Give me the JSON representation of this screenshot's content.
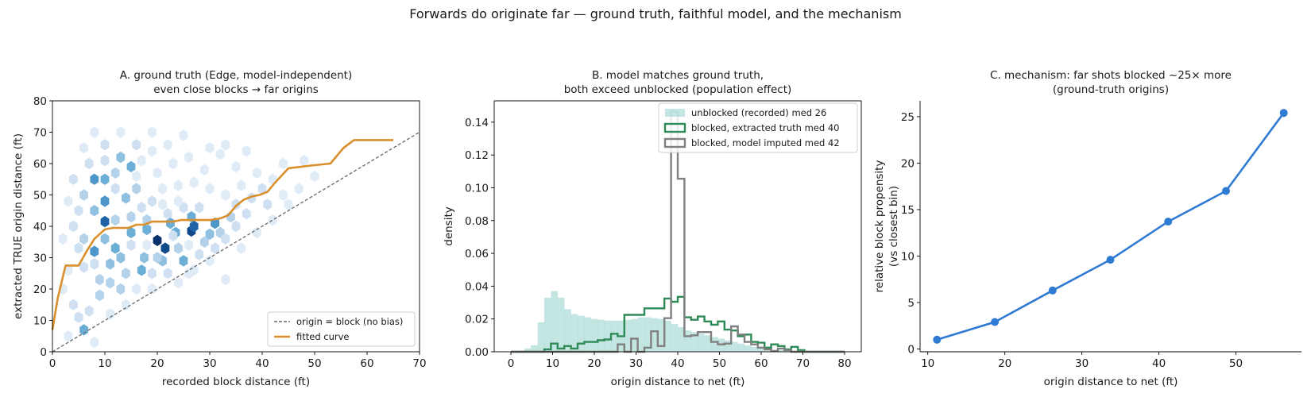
{
  "figure": {
    "suptitle": "Forwards do originate far — ground truth, faithful model, and the mechanism"
  },
  "chart_data": [
    {
      "panel": "A",
      "type": "heatmap",
      "title_lines": [
        "A. ground truth (Edge, model-independent)",
        "even close blocks → far origins"
      ],
      "xlabel": "recorded block distance (ft)",
      "ylabel": "extracted TRUE origin distance (ft)",
      "xlim": [
        0,
        70
      ],
      "ylim": [
        0,
        80
      ],
      "xticks": [
        0,
        10,
        20,
        30,
        40,
        50,
        60,
        70
      ],
      "yticks": [
        0,
        10,
        20,
        30,
        40,
        50,
        60,
        70,
        80
      ],
      "hexbin_counts": [
        {
          "x": 20,
          "y": 35.5,
          "c": 10
        },
        {
          "x": 21.5,
          "y": 33,
          "c": 9
        },
        {
          "x": 26.5,
          "y": 38.5,
          "c": 9
        },
        {
          "x": 27,
          "y": 40,
          "c": 8
        },
        {
          "x": 10,
          "y": 41.5,
          "c": 8
        },
        {
          "x": 31,
          "y": 41,
          "c": 6
        },
        {
          "x": 8,
          "y": 55,
          "c": 6
        },
        {
          "x": 8,
          "y": 32,
          "c": 6
        },
        {
          "x": 10,
          "y": 48,
          "c": 6
        },
        {
          "x": 10,
          "y": 55,
          "c": 5
        },
        {
          "x": 15,
          "y": 38,
          "c": 5
        },
        {
          "x": 18,
          "y": 39,
          "c": 5
        },
        {
          "x": 23.5,
          "y": 38,
          "c": 5
        },
        {
          "x": 22.5,
          "y": 41,
          "c": 5
        },
        {
          "x": 26.5,
          "y": 43,
          "c": 5
        },
        {
          "x": 30,
          "y": 37.5,
          "c": 4
        },
        {
          "x": 25,
          "y": 29,
          "c": 5
        },
        {
          "x": 21,
          "y": 29,
          "c": 4
        },
        {
          "x": 17,
          "y": 26,
          "c": 5
        },
        {
          "x": 12,
          "y": 33,
          "c": 5
        },
        {
          "x": 11,
          "y": 28,
          "c": 4
        },
        {
          "x": 6,
          "y": 7,
          "c": 5
        },
        {
          "x": 15,
          "y": 59,
          "c": 5
        },
        {
          "x": 13,
          "y": 62,
          "c": 4
        },
        {
          "x": 8,
          "y": 45,
          "c": 4
        },
        {
          "x": 10,
          "y": 36,
          "c": 4
        },
        {
          "x": 13,
          "y": 30,
          "c": 4
        },
        {
          "x": 14,
          "y": 49,
          "c": 4
        },
        {
          "x": 18,
          "y": 42,
          "c": 3
        },
        {
          "x": 20,
          "y": 30,
          "c": 3
        },
        {
          "x": 17.5,
          "y": 30,
          "c": 4
        },
        {
          "x": 24,
          "y": 33,
          "c": 3
        },
        {
          "x": 29,
          "y": 35,
          "c": 3
        },
        {
          "x": 32,
          "y": 38,
          "c": 3
        },
        {
          "x": 34,
          "y": 43,
          "c": 3
        },
        {
          "x": 12,
          "y": 42,
          "c": 3
        },
        {
          "x": 15,
          "y": 43,
          "c": 3
        },
        {
          "x": 14,
          "y": 25,
          "c": 3
        },
        {
          "x": 11,
          "y": 22,
          "c": 3
        },
        {
          "x": 9,
          "y": 23,
          "c": 3
        },
        {
          "x": 13,
          "y": 20,
          "c": 3
        },
        {
          "x": 9,
          "y": 18,
          "c": 3
        },
        {
          "x": 6,
          "y": 36,
          "c": 3
        },
        {
          "x": 6,
          "y": 50,
          "c": 3
        },
        {
          "x": 16,
          "y": 52,
          "c": 3
        },
        {
          "x": 12,
          "y": 57,
          "c": 3
        },
        {
          "x": 16,
          "y": 66,
          "c": 2
        },
        {
          "x": 10,
          "y": 66,
          "c": 2
        },
        {
          "x": 7,
          "y": 13,
          "c": 2
        },
        {
          "x": 5,
          "y": 11,
          "c": 2
        },
        {
          "x": 4,
          "y": 15,
          "c": 2
        },
        {
          "x": 6,
          "y": 27,
          "c": 2
        },
        {
          "x": 5,
          "y": 33,
          "c": 2
        },
        {
          "x": 4,
          "y": 40,
          "c": 2
        },
        {
          "x": 5,
          "y": 45,
          "c": 2
        },
        {
          "x": 4,
          "y": 55,
          "c": 2
        },
        {
          "x": 7,
          "y": 60,
          "c": 2
        },
        {
          "x": 10,
          "y": 61,
          "c": 2
        },
        {
          "x": 12,
          "y": 52,
          "c": 2
        },
        {
          "x": 8,
          "y": 28,
          "c": 2
        },
        {
          "x": 15,
          "y": 34,
          "c": 2
        },
        {
          "x": 19,
          "y": 25,
          "c": 2
        },
        {
          "x": 22,
          "y": 25,
          "c": 2
        },
        {
          "x": 23,
          "y": 37,
          "c": 2
        },
        {
          "x": 17,
          "y": 46,
          "c": 2
        },
        {
          "x": 19,
          "y": 48,
          "c": 2
        },
        {
          "x": 22,
          "y": 44,
          "c": 2
        },
        {
          "x": 25,
          "y": 46,
          "c": 2
        },
        {
          "x": 28,
          "y": 46,
          "c": 2
        },
        {
          "x": 28,
          "y": 31,
          "c": 2
        },
        {
          "x": 31,
          "y": 33,
          "c": 2
        },
        {
          "x": 33,
          "y": 36,
          "c": 2
        },
        {
          "x": 35,
          "y": 40,
          "c": 2
        },
        {
          "x": 37,
          "y": 44,
          "c": 2
        },
        {
          "x": 35,
          "y": 47,
          "c": 2
        },
        {
          "x": 38,
          "y": 49,
          "c": 2
        },
        {
          "x": 40,
          "y": 52,
          "c": 2
        },
        {
          "x": 41,
          "y": 47,
          "c": 2
        },
        {
          "x": 36,
          "y": 53,
          "c": 1
        },
        {
          "x": 42,
          "y": 55,
          "c": 1
        },
        {
          "x": 44,
          "y": 50,
          "c": 1
        },
        {
          "x": 39,
          "y": 57,
          "c": 1
        },
        {
          "x": 33,
          "y": 50,
          "c": 1
        },
        {
          "x": 30,
          "y": 52,
          "c": 1
        },
        {
          "x": 27,
          "y": 54,
          "c": 1
        },
        {
          "x": 24,
          "y": 53,
          "c": 1
        },
        {
          "x": 21,
          "y": 52,
          "c": 1
        },
        {
          "x": 20,
          "y": 57,
          "c": 1
        },
        {
          "x": 23,
          "y": 60,
          "c": 1
        },
        {
          "x": 17,
          "y": 61,
          "c": 1
        },
        {
          "x": 19,
          "y": 64,
          "c": 1
        },
        {
          "x": 22,
          "y": 66,
          "c": 1
        },
        {
          "x": 26,
          "y": 62,
          "c": 1
        },
        {
          "x": 29,
          "y": 58,
          "c": 1
        },
        {
          "x": 32,
          "y": 63,
          "c": 1
        },
        {
          "x": 35,
          "y": 59,
          "c": 1
        },
        {
          "x": 33,
          "y": 66,
          "c": 1
        },
        {
          "x": 25,
          "y": 69,
          "c": 1
        },
        {
          "x": 19,
          "y": 70,
          "c": 1
        },
        {
          "x": 13,
          "y": 70,
          "c": 1
        },
        {
          "x": 8,
          "y": 70,
          "c": 1
        },
        {
          "x": 6,
          "y": 65,
          "c": 1
        },
        {
          "x": 3,
          "y": 48,
          "c": 1
        },
        {
          "x": 2,
          "y": 36,
          "c": 1
        },
        {
          "x": 3,
          "y": 26,
          "c": 1
        },
        {
          "x": 2,
          "y": 20,
          "c": 1
        },
        {
          "x": 3,
          "y": 5,
          "c": 1
        },
        {
          "x": 8,
          "y": 3,
          "c": 1
        },
        {
          "x": 11,
          "y": 12,
          "c": 1
        },
        {
          "x": 14,
          "y": 15,
          "c": 1
        },
        {
          "x": 16,
          "y": 20,
          "c": 1
        },
        {
          "x": 19,
          "y": 20,
          "c": 1
        },
        {
          "x": 27,
          "y": 26,
          "c": 1
        },
        {
          "x": 30,
          "y": 29,
          "c": 1
        },
        {
          "x": 33,
          "y": 23,
          "c": 1
        },
        {
          "x": 36,
          "y": 33,
          "c": 1
        },
        {
          "x": 39,
          "y": 38,
          "c": 1
        },
        {
          "x": 42,
          "y": 42,
          "c": 1
        },
        {
          "x": 45,
          "y": 47,
          "c": 1
        },
        {
          "x": 47,
          "y": 52,
          "c": 1
        },
        {
          "x": 50,
          "y": 56,
          "c": 1
        },
        {
          "x": 44,
          "y": 60,
          "c": 1
        },
        {
          "x": 48,
          "y": 61,
          "c": 1
        },
        {
          "x": 30,
          "y": 65,
          "c": 1
        },
        {
          "x": 37,
          "y": 64,
          "c": 1
        },
        {
          "x": 24,
          "y": 48,
          "c": 1
        },
        {
          "x": 21,
          "y": 47,
          "c": 1
        },
        {
          "x": 16,
          "y": 56,
          "c": 1
        },
        {
          "x": 18,
          "y": 34,
          "c": 1
        },
        {
          "x": 26,
          "y": 34,
          "c": 1
        },
        {
          "x": 26,
          "y": 25,
          "c": 1
        },
        {
          "x": 24,
          "y": 22,
          "c": 1
        }
      ],
      "identity_line": {
        "label": "origin = block (no bias)",
        "x": [
          0,
          70
        ],
        "y": [
          0,
          70
        ],
        "color": "#666666"
      },
      "fitted_curve": {
        "label": "fitted curve",
        "color": "#d98f2b",
        "x": [
          0,
          1,
          2.5,
          5,
          6.5,
          8,
          10,
          11.5,
          14.5,
          16,
          17.5,
          19,
          20.5,
          23,
          24.5,
          26,
          28,
          30,
          32,
          33.5,
          35,
          36.5,
          38,
          39.5,
          41,
          42.5,
          45,
          47.5,
          50,
          53,
          55.5,
          57.5,
          60,
          65
        ],
        "y": [
          7,
          17,
          27.5,
          27.5,
          32,
          36,
          39,
          39.5,
          39.5,
          40.5,
          40.5,
          41.5,
          41.5,
          41.5,
          42,
          42,
          42,
          42,
          42.5,
          43.5,
          46.5,
          48.5,
          49.5,
          50,
          51,
          54,
          58.5,
          59,
          59.5,
          60,
          65,
          67.5,
          67.5,
          67.5
        ]
      },
      "legend": {
        "placement": "lower-right",
        "entries": [
          "origin = block (no bias)",
          "fitted curve"
        ]
      }
    },
    {
      "panel": "B",
      "type": "bar",
      "title_lines": [
        "B. model matches ground truth,",
        "both exceed unblocked (population effect)"
      ],
      "xlabel": "origin distance to net (ft)",
      "ylabel": "density",
      "xlim": [
        -4,
        84
      ],
      "ylim": [
        0,
        0.153
      ],
      "xticks": [
        0,
        10,
        20,
        30,
        40,
        50,
        60,
        70,
        80
      ],
      "yticks": [
        0.0,
        0.02,
        0.04,
        0.06,
        0.08,
        0.1,
        0.12,
        0.14
      ],
      "ytick_labels": [
        "0.00",
        "0.02",
        "0.04",
        "0.06",
        "0.08",
        "0.10",
        "0.12",
        "0.14"
      ],
      "bin_width": 1.6,
      "series": [
        {
          "name": "unblocked (recorded)  med 26",
          "style": "filled",
          "color": "#93d2cc",
          "x_start": 0,
          "values": [
            0,
            0.0005,
            0.002,
            0.004,
            0.018,
            0.033,
            0.037,
            0.033,
            0.026,
            0.023,
            0.022,
            0.021,
            0.02,
            0.0195,
            0.019,
            0.019,
            0.019,
            0.0195,
            0.02,
            0.021,
            0.021,
            0.0205,
            0.02,
            0.019,
            0.017,
            0.015,
            0.013,
            0.012,
            0.011,
            0.01,
            0.009,
            0.008,
            0.007,
            0.006,
            0.005,
            0.004,
            0.003,
            0.002,
            0.0015,
            0.001,
            0.001,
            0.0007,
            0.0005,
            0.0004,
            0.0003,
            0.0002,
            0.0002,
            0.0001,
            0.0001,
            0.0001
          ]
        },
        {
          "name": "blocked, extracted truth  med 40",
          "style": "step",
          "color": "#2e8a57",
          "x_start": 0,
          "values": [
            0,
            0,
            0,
            0,
            0,
            0.0015,
            0.005,
            0.002,
            0.0035,
            0.002,
            0.005,
            0.006,
            0.006,
            0.007,
            0.0075,
            0.011,
            0.0095,
            0.0225,
            0.0225,
            0.0225,
            0.0265,
            0.0265,
            0.0265,
            0.0325,
            0.0305,
            0.0335,
            0.021,
            0.0195,
            0.0215,
            0.0185,
            0.0165,
            0.0185,
            0.0135,
            0.013,
            0.0095,
            0.0105,
            0.006,
            0.0055,
            0.0025,
            0.0045,
            0.0035,
            0.0015,
            0.003,
            0.001,
            0,
            0,
            0,
            0,
            0,
            0
          ]
        },
        {
          "name": "blocked, model imputed  med 42",
          "style": "step",
          "color": "#808080",
          "x_start": 0,
          "values": [
            0,
            0,
            0,
            0,
            0,
            0,
            0,
            0,
            0,
            0,
            0,
            0,
            0,
            0,
            0,
            0,
            0.0045,
            0,
            0.008,
            0,
            0.0025,
            0.0125,
            0.0035,
            0.0205,
            0.1465,
            0.1055,
            0.0095,
            0.01,
            0.012,
            0.012,
            0.006,
            0.0045,
            0.005,
            0.0155,
            0.0105,
            0.006,
            0.0045,
            0.0025,
            0.0015,
            0.0005,
            0.002,
            0.001,
            0,
            0,
            0,
            0,
            0,
            0,
            0,
            0
          ]
        }
      ],
      "legend": {
        "placement": "top-right"
      }
    },
    {
      "panel": "C",
      "type": "line",
      "title_lines": [
        "C. mechanism: far shots blocked ~25× more",
        "(ground-truth origins)"
      ],
      "xlabel": "origin distance to net (ft)",
      "ylabel_lines": [
        "relative block propensity",
        "(vs closest bin)"
      ],
      "xlim": [
        9,
        58.5
      ],
      "ylim": [
        -0.3,
        26.7
      ],
      "xticks": [
        10,
        20,
        30,
        40,
        50
      ],
      "yticks": [
        0,
        5,
        10,
        15,
        20,
        25
      ],
      "color": "#2f7ad2",
      "x": [
        11.2,
        18.7,
        26.2,
        33.7,
        41.2,
        48.7,
        56.2
      ],
      "y": [
        1.0,
        2.9,
        6.3,
        9.6,
        13.7,
        17.0,
        25.4
      ]
    }
  ]
}
